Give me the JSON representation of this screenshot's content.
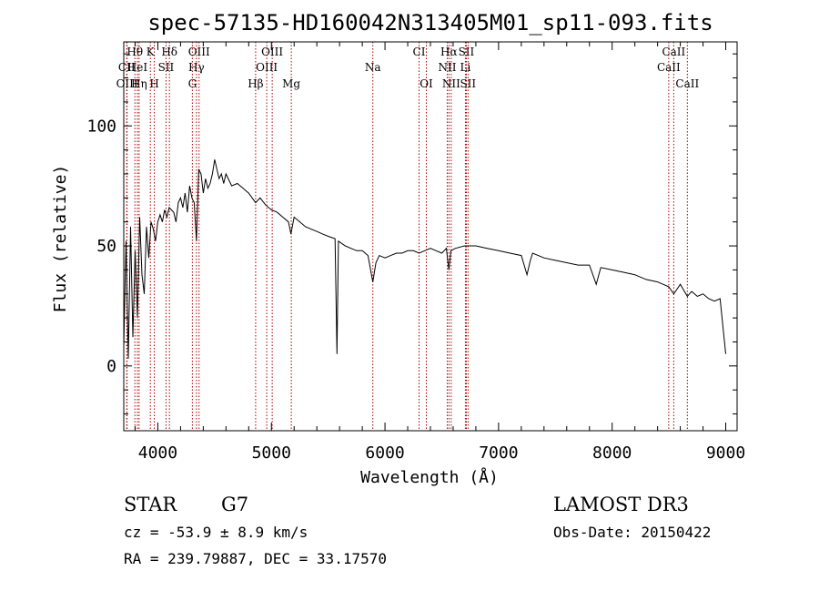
{
  "chart_data": {
    "type": "line",
    "title": "spec-57135-HD160042N313405M01_sp11-093.fits",
    "xlabel": "Wavelength (Å)",
    "ylabel": "Flux (relative)",
    "xlim": [
      3700,
      9100
    ],
    "ylim": [
      -27,
      135
    ],
    "xticks": [
      4000,
      5000,
      6000,
      7000,
      8000,
      9000
    ],
    "yticks": [
      0,
      50,
      100
    ],
    "grid": false,
    "series": [
      {
        "name": "spectrum",
        "x": [
          3700,
          3720,
          3740,
          3760,
          3780,
          3800,
          3820,
          3840,
          3860,
          3880,
          3900,
          3920,
          3940,
          3960,
          3980,
          4000,
          4020,
          4040,
          4060,
          4080,
          4100,
          4120,
          4140,
          4160,
          4180,
          4200,
          4220,
          4240,
          4260,
          4280,
          4300,
          4320,
          4340,
          4360,
          4380,
          4400,
          4420,
          4440,
          4460,
          4480,
          4500,
          4520,
          4540,
          4560,
          4580,
          4600,
          4650,
          4700,
          4750,
          4800,
          4861,
          4900,
          4950,
          5000,
          5050,
          5100,
          5150,
          5172,
          5200,
          5250,
          5300,
          5350,
          5400,
          5450,
          5500,
          5560,
          5577,
          5590,
          5650,
          5700,
          5750,
          5800,
          5850,
          5893,
          5920,
          5950,
          6000,
          6050,
          6100,
          6150,
          6200,
          6250,
          6300,
          6350,
          6400,
          6450,
          6500,
          6540,
          6563,
          6580,
          6620,
          6700,
          6800,
          6900,
          7000,
          7100,
          7200,
          7250,
          7280,
          7300,
          7400,
          7500,
          7600,
          7700,
          7800,
          7860,
          7900,
          8000,
          8100,
          8200,
          8300,
          8400,
          8498,
          8542,
          8600,
          8662,
          8700,
          8750,
          8800,
          8850,
          8900,
          8950,
          9000
        ],
        "values": [
          8,
          52,
          3,
          58,
          12,
          48,
          20,
          62,
          38,
          30,
          58,
          45,
          60,
          57,
          52,
          60,
          63,
          60,
          65,
          62,
          66,
          65,
          64,
          60,
          68,
          70,
          66,
          72,
          64,
          75,
          70,
          68,
          52,
          82,
          80,
          72,
          78,
          74,
          76,
          80,
          86,
          82,
          78,
          80,
          76,
          80,
          75,
          76,
          74,
          72,
          68,
          70,
          67,
          65,
          64,
          62,
          60,
          55,
          62,
          60,
          58,
          57,
          56,
          55,
          54,
          53,
          5,
          52,
          50,
          49,
          48,
          48,
          46,
          35,
          43,
          46,
          45,
          46,
          47,
          47,
          48,
          48,
          47,
          48,
          49,
          48,
          47,
          49,
          40,
          48,
          49,
          50,
          50,
          49,
          48,
          47,
          46,
          38,
          44,
          47,
          45,
          44,
          43,
          42,
          42,
          34,
          41,
          40,
          39,
          38,
          36,
          35,
          33,
          30,
          34,
          29,
          31,
          29,
          30,
          28,
          27,
          28,
          5
        ]
      }
    ],
    "spectral_lines": [
      {
        "name": "Hθ",
        "wavelength": 3798,
        "row": 1
      },
      {
        "name": "CII",
        "wavelength": 3726,
        "row": 2
      },
      {
        "name": "HeI",
        "wavelength": 3820,
        "row": 2
      },
      {
        "name": "OIII",
        "wavelength": 3729,
        "row": 3
      },
      {
        "name": "Hη",
        "wavelength": 3835,
        "row": 3
      },
      {
        "name": "K",
        "wavelength": 3934,
        "row": 1
      },
      {
        "name": "H",
        "wavelength": 3969,
        "row": 3
      },
      {
        "name": "SII",
        "wavelength": 4072,
        "row": 2
      },
      {
        "name": "Hδ",
        "wavelength": 4102,
        "row": 1
      },
      {
        "name": "OIII",
        "wavelength": 4363,
        "row": 1
      },
      {
        "name": "Hγ",
        "wavelength": 4340,
        "row": 2
      },
      {
        "name": "G",
        "wavelength": 4304,
        "row": 3
      },
      {
        "name": "OIII",
        "wavelength": 5007,
        "row": 1
      },
      {
        "name": "OIII",
        "wavelength": 4959,
        "row": 2
      },
      {
        "name": "Hβ",
        "wavelength": 4861,
        "row": 3
      },
      {
        "name": "Mg",
        "wavelength": 5175,
        "row": 3
      },
      {
        "name": "Na",
        "wavelength": 5893,
        "row": 2
      },
      {
        "name": "CI",
        "wavelength": 6300,
        "row": 1
      },
      {
        "name": "OI",
        "wavelength": 6364,
        "row": 3
      },
      {
        "name": "Hα",
        "wavelength": 6563,
        "row": 1
      },
      {
        "name": "NII",
        "wavelength": 6548,
        "row": 2
      },
      {
        "name": "NII",
        "wavelength": 6583,
        "row": 3
      },
      {
        "name": "SII",
        "wavelength": 6716,
        "row": 1
      },
      {
        "name": "Li",
        "wavelength": 6708,
        "row": 2
      },
      {
        "name": "SII",
        "wavelength": 6731,
        "row": 3
      },
      {
        "name": "CaII",
        "wavelength": 8542,
        "row": 1
      },
      {
        "name": "CaII",
        "wavelength": 8498,
        "row": 2
      },
      {
        "name": "CaII",
        "wavelength": 8662,
        "row": 3
      }
    ],
    "line_color": "#aa0000",
    "spectrum_color": "#000000"
  },
  "info": {
    "object_class": "STAR",
    "subclass": "G7",
    "survey": "LAMOST DR3",
    "cz": "cz = -53.9 ± 8.9 km/s",
    "obs_date": "Obs-Date: 20150422",
    "coords": "RA = 239.79887, DEC =  33.17570"
  }
}
